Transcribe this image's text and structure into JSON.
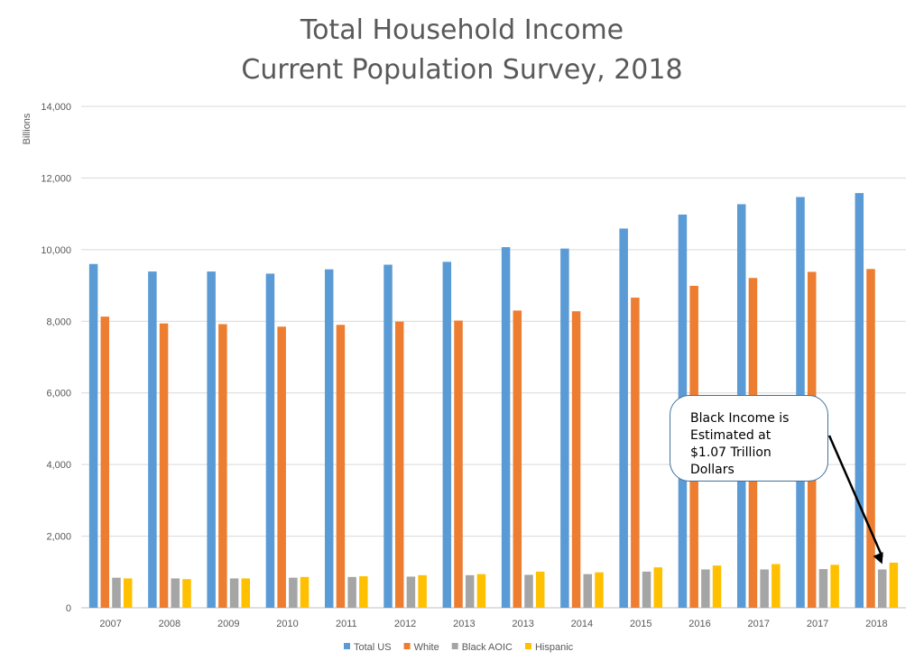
{
  "chart_data": {
    "type": "bar",
    "title": [
      "Total Household Income",
      "Current Population Survey, 2018"
    ],
    "ylabel": "Billions",
    "xlabel": "",
    "ylim": [
      0,
      14000
    ],
    "yticks": [
      "0",
      "2,000",
      "4,000",
      "6,000",
      "8,000",
      "10,000",
      "12,000",
      "14,000"
    ],
    "categories": [
      "2007",
      "2008",
      "2009",
      "2010",
      "2011",
      "2012",
      "2013",
      "2013",
      "2014",
      "2015",
      "2016",
      "2017",
      "2017",
      "2018"
    ],
    "series": [
      {
        "name": "Total US",
        "color": "#5b9bd5",
        "values": [
          9600,
          9390,
          9390,
          9330,
          9450,
          9580,
          9660,
          10070,
          10030,
          10590,
          10980,
          11270,
          11470,
          11580
        ]
      },
      {
        "name": "White",
        "color": "#ed7d31",
        "values": [
          8130,
          7940,
          7920,
          7850,
          7900,
          7990,
          8020,
          8300,
          8280,
          8660,
          8990,
          9210,
          9380,
          9460
        ]
      },
      {
        "name": "Black AOIC",
        "color": "#a5a5a5",
        "values": [
          840,
          820,
          820,
          840,
          860,
          870,
          910,
          920,
          940,
          1010,
          1070,
          1070,
          1080,
          1070
        ]
      },
      {
        "name": "Hispanic",
        "color": "#ffc000",
        "values": [
          820,
          800,
          820,
          860,
          880,
          910,
          940,
          1010,
          990,
          1130,
          1180,
          1220,
          1200,
          1260
        ]
      }
    ],
    "legend_position": "bottom",
    "grid": true,
    "annotation": {
      "lines": [
        "Black Income is",
        "Estimated at",
        "$1.07 Trillion Dollars"
      ],
      "points_to": {
        "category_index": 13,
        "series": "Black AOIC"
      }
    }
  }
}
